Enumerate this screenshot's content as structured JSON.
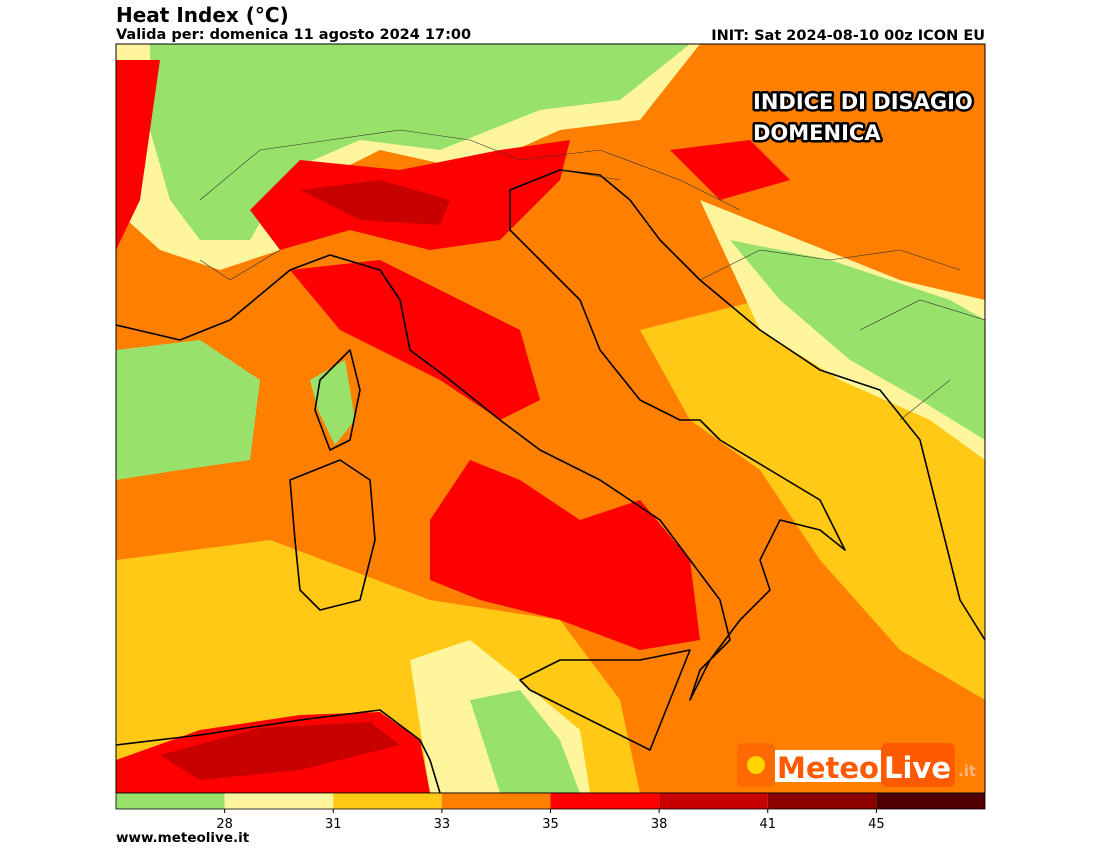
{
  "header": {
    "title": "Heat Index (°C)",
    "subtitle": "Valida per: domenica 11 agosto 2024 17:00",
    "init": "INIT: Sat 2024-08-10 00z ICON EU"
  },
  "overlay": {
    "lines": [
      "INDICE DI DISAGIO",
      "DOMENICA"
    ]
  },
  "colorbar": {
    "colors": [
      "#98e26c",
      "#fff59d",
      "#ffc916",
      "#ff7f00",
      "#ff0000",
      "#c80000",
      "#8c0000",
      "#500000"
    ],
    "ticks": [
      28,
      31,
      33,
      35,
      38,
      41,
      45
    ]
  },
  "logo": {
    "parts": [
      "Meteo",
      "Live",
      ".it"
    ]
  },
  "footer": {
    "url": "www.meteolive.it"
  }
}
